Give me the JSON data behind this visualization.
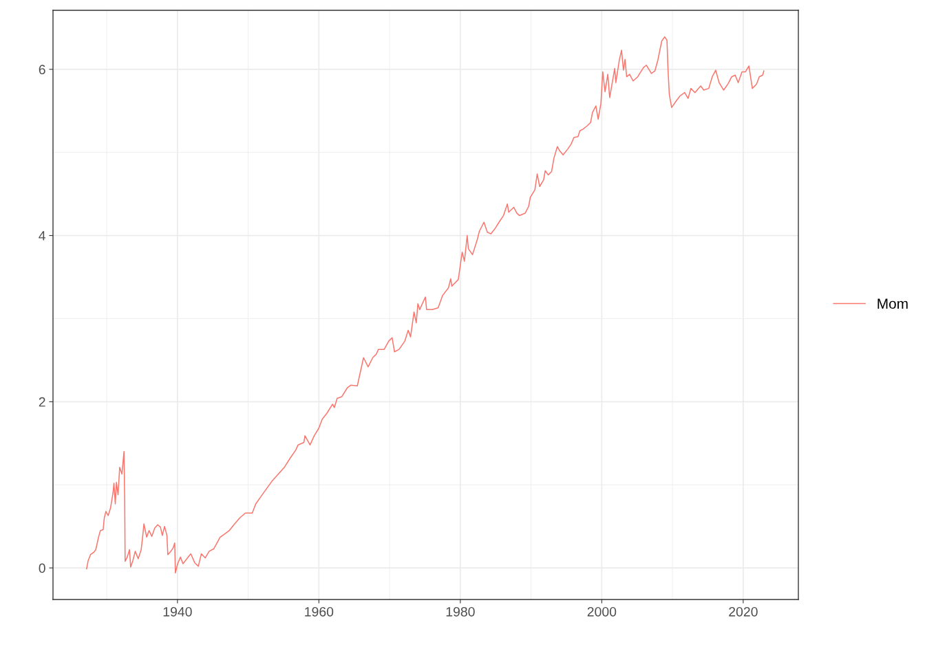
{
  "chart_data": {
    "type": "line",
    "xlim": [
      1922.4,
      2027.8
    ],
    "ylim": [
      -0.38,
      6.71
    ],
    "xticks": [
      1940,
      1960,
      1980,
      2000,
      2020
    ],
    "yticks": [
      0,
      2,
      4,
      6
    ],
    "grid": true,
    "legend": "right",
    "line_style": "solid",
    "marker": "none",
    "series": [
      {
        "name": "Mom",
        "color": "#f8766d",
        "x": [
          1927.15,
          1927.38,
          1927.71,
          1928.19,
          1928.45,
          1928.84,
          1929.1,
          1929.49,
          1929.65,
          1929.88,
          1930.2,
          1930.53,
          1930.88,
          1931.02,
          1931.21,
          1931.37,
          1931.6,
          1931.83,
          1932.15,
          1932.44,
          1932.54,
          1932.6,
          1932.9,
          1933.22,
          1933.38,
          1933.7,
          1934.03,
          1934.45,
          1934.87,
          1935.07,
          1935.26,
          1935.65,
          1935.98,
          1936.37,
          1936.79,
          1937.21,
          1937.6,
          1937.86,
          1938.18,
          1938.51,
          1938.64,
          1939.06,
          1939.39,
          1939.61,
          1939.71,
          1940.03,
          1940.42,
          1940.78,
          1941.33,
          1941.88,
          1942.46,
          1942.95,
          1943.38,
          1943.92,
          1944.48,
          1945.13,
          1946.03,
          1946.69,
          1947.33,
          1947.98,
          1948.79,
          1949.61,
          1950.58,
          1951.07,
          1951.81,
          1953.33,
          1955.11,
          1955.93,
          1956.74,
          1957.06,
          1957.88,
          1958.03,
          1958.75,
          1959.34,
          1959.98,
          1960.47,
          1961.12,
          1961.93,
          1962.19,
          1962.58,
          1963.23,
          1964.04,
          1964.53,
          1965.43,
          1965.82,
          1966.31,
          1966.96,
          1967.61,
          1968.1,
          1968.42,
          1969.23,
          1969.88,
          1970.36,
          1970.69,
          1971.34,
          1972.15,
          1972.63,
          1972.96,
          1973.45,
          1973.77,
          1974.0,
          1974.26,
          1975.06,
          1975.23,
          1976.04,
          1976.86,
          1977.5,
          1978.32,
          1978.64,
          1978.8,
          1979.71,
          1980.26,
          1980.58,
          1980.97,
          1981.14,
          1981.72,
          1982.36,
          1982.69,
          1983.34,
          1983.82,
          1984.31,
          1984.96,
          1985.55,
          1986.1,
          1986.65,
          1986.84,
          1987.56,
          1987.98,
          1988.37,
          1989.18,
          1989.66,
          1989.9,
          1990.54,
          1990.87,
          1991.22,
          1991.78,
          1992.0,
          1992.43,
          1992.91,
          1993.23,
          1993.72,
          1994.04,
          1994.53,
          1995.18,
          1995.67,
          1996.06,
          1996.64,
          1996.9,
          1997.35,
          1997.94,
          1998.42,
          1998.69,
          1999.17,
          1999.49,
          1999.88,
          2000.14,
          2000.46,
          2000.85,
          2001.12,
          2001.83,
          2001.99,
          2002.48,
          2002.8,
          2003.06,
          2003.29,
          2003.52,
          2003.94,
          2004.43,
          2005.08,
          2005.89,
          2006.31,
          2007.02,
          2007.51,
          2007.93,
          2008.48,
          2008.9,
          2009.22,
          2009.36,
          2009.55,
          2009.88,
          2010.53,
          2011.07,
          2011.72,
          2012.21,
          2012.6,
          2013.18,
          2013.99,
          2014.42,
          2015.13,
          2015.62,
          2016.11,
          2016.59,
          2017.24,
          2017.89,
          2018.37,
          2018.86,
          2019.29,
          2019.83,
          2020.32,
          2020.81,
          2021.29,
          2021.88,
          2022.27,
          2022.75,
          2022.92
        ],
        "values": [
          -0.01,
          0.09,
          0.16,
          0.19,
          0.22,
          0.37,
          0.45,
          0.46,
          0.6,
          0.68,
          0.63,
          0.72,
          0.9,
          1.02,
          0.77,
          1.03,
          0.88,
          1.21,
          1.13,
          1.4,
          0.82,
          0.08,
          0.13,
          0.22,
          0.01,
          0.09,
          0.2,
          0.11,
          0.22,
          0.37,
          0.53,
          0.37,
          0.45,
          0.38,
          0.48,
          0.52,
          0.49,
          0.39,
          0.5,
          0.39,
          0.16,
          0.2,
          0.24,
          0.3,
          -0.06,
          0.05,
          0.13,
          0.05,
          0.11,
          0.17,
          0.06,
          0.02,
          0.17,
          0.12,
          0.2,
          0.23,
          0.37,
          0.41,
          0.45,
          0.52,
          0.6,
          0.66,
          0.66,
          0.77,
          0.86,
          1.04,
          1.21,
          1.32,
          1.42,
          1.48,
          1.51,
          1.59,
          1.48,
          1.59,
          1.68,
          1.79,
          1.86,
          1.97,
          1.93,
          2.04,
          2.06,
          2.17,
          2.2,
          2.19,
          2.34,
          2.53,
          2.42,
          2.53,
          2.57,
          2.63,
          2.63,
          2.73,
          2.77,
          2.6,
          2.63,
          2.73,
          2.86,
          2.78,
          3.08,
          2.95,
          3.18,
          3.11,
          3.26,
          3.11,
          3.11,
          3.13,
          3.28,
          3.37,
          3.48,
          3.39,
          3.47,
          3.8,
          3.69,
          4.0,
          3.84,
          3.77,
          3.94,
          4.05,
          4.16,
          4.04,
          4.02,
          4.09,
          4.17,
          4.24,
          4.38,
          4.28,
          4.34,
          4.27,
          4.24,
          4.27,
          4.35,
          4.46,
          4.55,
          4.74,
          4.59,
          4.67,
          4.78,
          4.73,
          4.77,
          4.93,
          5.07,
          5.02,
          4.97,
          5.04,
          5.1,
          5.18,
          5.19,
          5.26,
          5.28,
          5.32,
          5.36,
          5.48,
          5.56,
          5.4,
          5.59,
          5.97,
          5.73,
          5.94,
          5.66,
          6.01,
          5.84,
          6.11,
          6.23,
          5.99,
          6.12,
          5.91,
          5.94,
          5.86,
          5.91,
          6.02,
          6.05,
          5.95,
          5.98,
          6.11,
          6.34,
          6.39,
          6.35,
          6.01,
          5.7,
          5.54,
          5.62,
          5.68,
          5.72,
          5.65,
          5.77,
          5.72,
          5.8,
          5.75,
          5.77,
          5.91,
          5.99,
          5.84,
          5.75,
          5.83,
          5.91,
          5.93,
          5.84,
          5.97,
          5.97,
          6.04,
          5.77,
          5.82,
          5.91,
          5.93,
          5.98
        ]
      }
    ]
  }
}
